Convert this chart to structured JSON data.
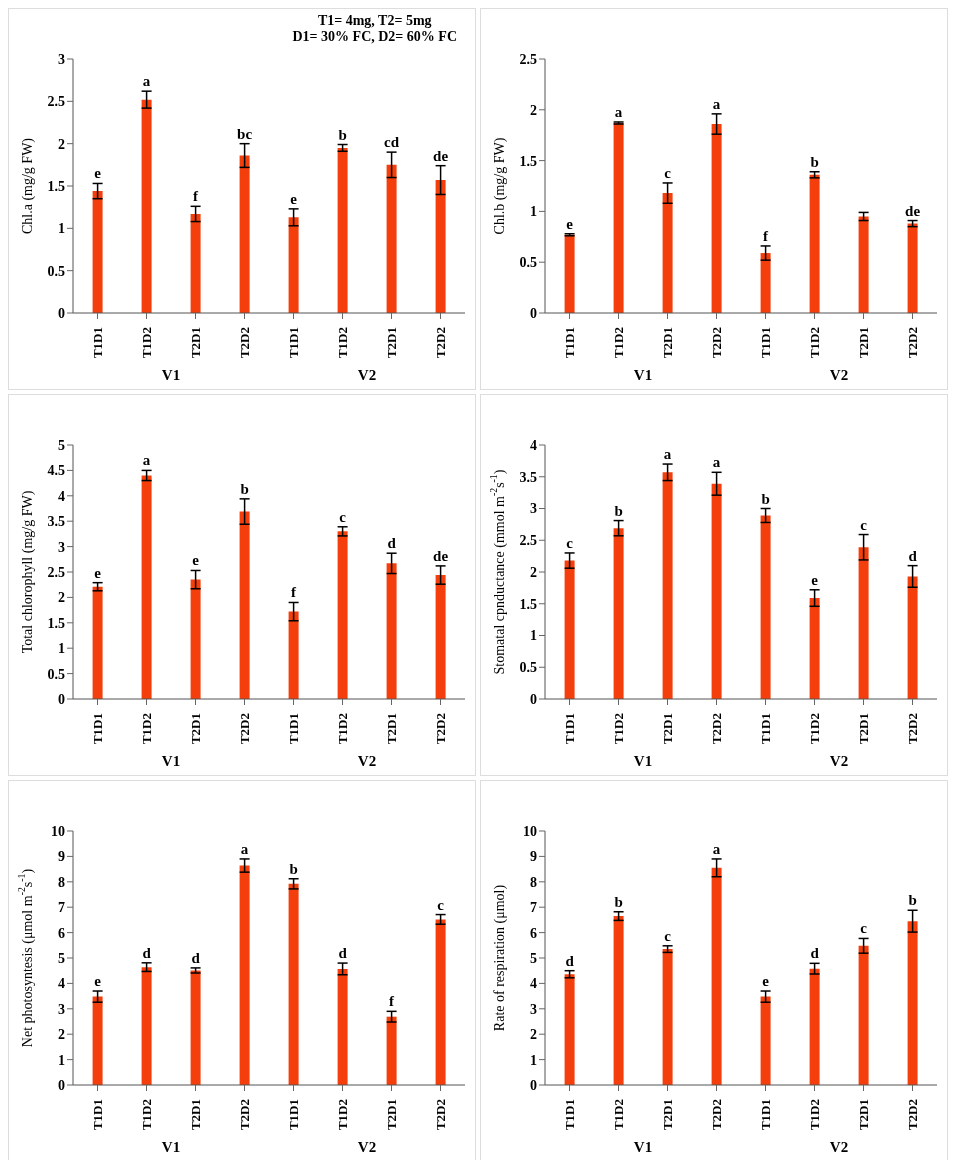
{
  "chart_data": [
    {
      "type": "bar",
      "title": "T1= 4mg, T2= 5mg",
      "subtitle": "D1= 30% FC, D2= 60% FC",
      "ylabel": "Chl.a (mg/g FW)",
      "categories": [
        "T1D1",
        "T1D2",
        "T2D1",
        "T2D2",
        "T1D1",
        "T1D2",
        "T2D1",
        "T2D2"
      ],
      "annotations": [
        "V1",
        "V2"
      ],
      "color": "#f43f0c",
      "values": [
        1.44,
        2.52,
        1.17,
        1.86,
        1.13,
        1.95,
        1.75,
        1.57
      ],
      "errors": [
        0.09,
        0.1,
        0.09,
        0.14,
        0.1,
        0.04,
        0.15,
        0.17
      ],
      "value_labels": [
        "e",
        "a",
        "f",
        "bc",
        "e",
        "b",
        "cd",
        "de"
      ],
      "ylim": [
        0,
        3
      ],
      "yticks": [
        0,
        0.5,
        1,
        1.5,
        2,
        2.5,
        3
      ]
    },
    {
      "type": "bar",
      "ylabel": "Chl.b (mg/g FW)",
      "categories": [
        "T1D1",
        "T1D2",
        "T2D1",
        "T2D2",
        "T1D1",
        "T1D2",
        "T2D1",
        "T2D2"
      ],
      "annotations": [
        "V1",
        "V2"
      ],
      "color": "#f43f0c",
      "values": [
        0.77,
        1.87,
        1.18,
        1.86,
        0.59,
        1.36,
        0.95,
        0.88
      ],
      "errors": [
        0.01,
        0.01,
        0.1,
        0.1,
        0.07,
        0.03,
        0.04,
        0.03
      ],
      "value_labels": [
        "e",
        "a",
        "c",
        "a",
        "f",
        "b",
        null,
        "de"
      ],
      "ylim": [
        0,
        2.5
      ],
      "yticks": [
        0,
        0.5,
        1,
        1.5,
        2,
        2.5
      ]
    },
    {
      "type": "bar",
      "ylabel": "Total chlorophyll (mg/g FW)",
      "categories": [
        "T1D1",
        "T1D2",
        "T2D1",
        "T2D2",
        "T1D1",
        "T1D2",
        "T2D1",
        "T2D2"
      ],
      "annotations": [
        "V1",
        "V2"
      ],
      "color": "#f43f0c",
      "values": [
        2.21,
        4.4,
        2.35,
        3.69,
        1.72,
        3.3,
        2.67,
        2.44
      ],
      "errors": [
        0.08,
        0.1,
        0.18,
        0.25,
        0.18,
        0.09,
        0.2,
        0.18
      ],
      "value_labels": [
        "e",
        "a",
        "e",
        "b",
        "f",
        "c",
        "d",
        "de"
      ],
      "ylim": [
        0,
        5
      ],
      "yticks": [
        0,
        0.5,
        1,
        1.5,
        2,
        2.5,
        3,
        3.5,
        4,
        4.5,
        5
      ]
    },
    {
      "type": "bar",
      "ylabel": "Stomatal cpnductance (mmol m$^{-2}$s$^{-1}$)",
      "categories": [
        "T1D1",
        "T1D2",
        "T2D1",
        "T2D2",
        "T1D1",
        "T1D2",
        "T2D1",
        "T2D2"
      ],
      "annotations": [
        "V1",
        "V2"
      ],
      "color": "#f43f0c",
      "values": [
        2.18,
        2.69,
        3.57,
        3.39,
        2.89,
        1.59,
        2.39,
        1.93
      ],
      "errors": [
        0.12,
        0.12,
        0.13,
        0.18,
        0.11,
        0.13,
        0.2,
        0.17
      ],
      "value_labels": [
        "c",
        "b",
        "a",
        "a",
        "b",
        "e",
        "c",
        "d"
      ],
      "ylim": [
        0,
        4
      ],
      "yticks": [
        0,
        0.5,
        1,
        1.5,
        2,
        2.5,
        3,
        3.5,
        4
      ]
    },
    {
      "type": "bar",
      "ylabel": "Net photosyntesis (μmol m$^{-2}$s$^{-1}$)",
      "categories": [
        "T1D1",
        "T1D2",
        "T2D1",
        "T2D2",
        "T1D1",
        "T1D2",
        "T2D1",
        "T2D2"
      ],
      "annotations": [
        "V1",
        "V2"
      ],
      "color": "#f43f0c",
      "values": [
        3.48,
        4.64,
        4.51,
        8.64,
        7.92,
        4.57,
        2.69,
        6.52
      ],
      "errors": [
        0.22,
        0.17,
        0.1,
        0.26,
        0.2,
        0.23,
        0.21,
        0.19
      ],
      "value_labels": [
        "e",
        "d",
        "d",
        "a",
        "b",
        "d",
        "f",
        "c"
      ],
      "ylim": [
        0,
        10
      ],
      "yticks": [
        0,
        1,
        2,
        3,
        4,
        5,
        6,
        7,
        8,
        9,
        10
      ]
    },
    {
      "type": "bar",
      "ylabel": "Rate of respiration (μmol)",
      "categories": [
        "T1D1",
        "T1D2",
        "T2D1",
        "T2D2",
        "T1D1",
        "T1D2",
        "T2D1",
        "T2D2"
      ],
      "annotations": [
        "V1",
        "V2"
      ],
      "color": "#f43f0c",
      "values": [
        4.36,
        6.65,
        5.35,
        8.55,
        3.48,
        4.58,
        5.48,
        6.45
      ],
      "errors": [
        0.14,
        0.17,
        0.13,
        0.35,
        0.22,
        0.21,
        0.29,
        0.43
      ],
      "value_labels": [
        "d",
        "b",
        "c",
        "a",
        "e",
        "d",
        "c",
        "b"
      ],
      "ylim": [
        0,
        10
      ],
      "yticks": [
        0,
        1,
        2,
        3,
        4,
        5,
        6,
        7,
        8,
        9,
        10
      ]
    }
  ]
}
